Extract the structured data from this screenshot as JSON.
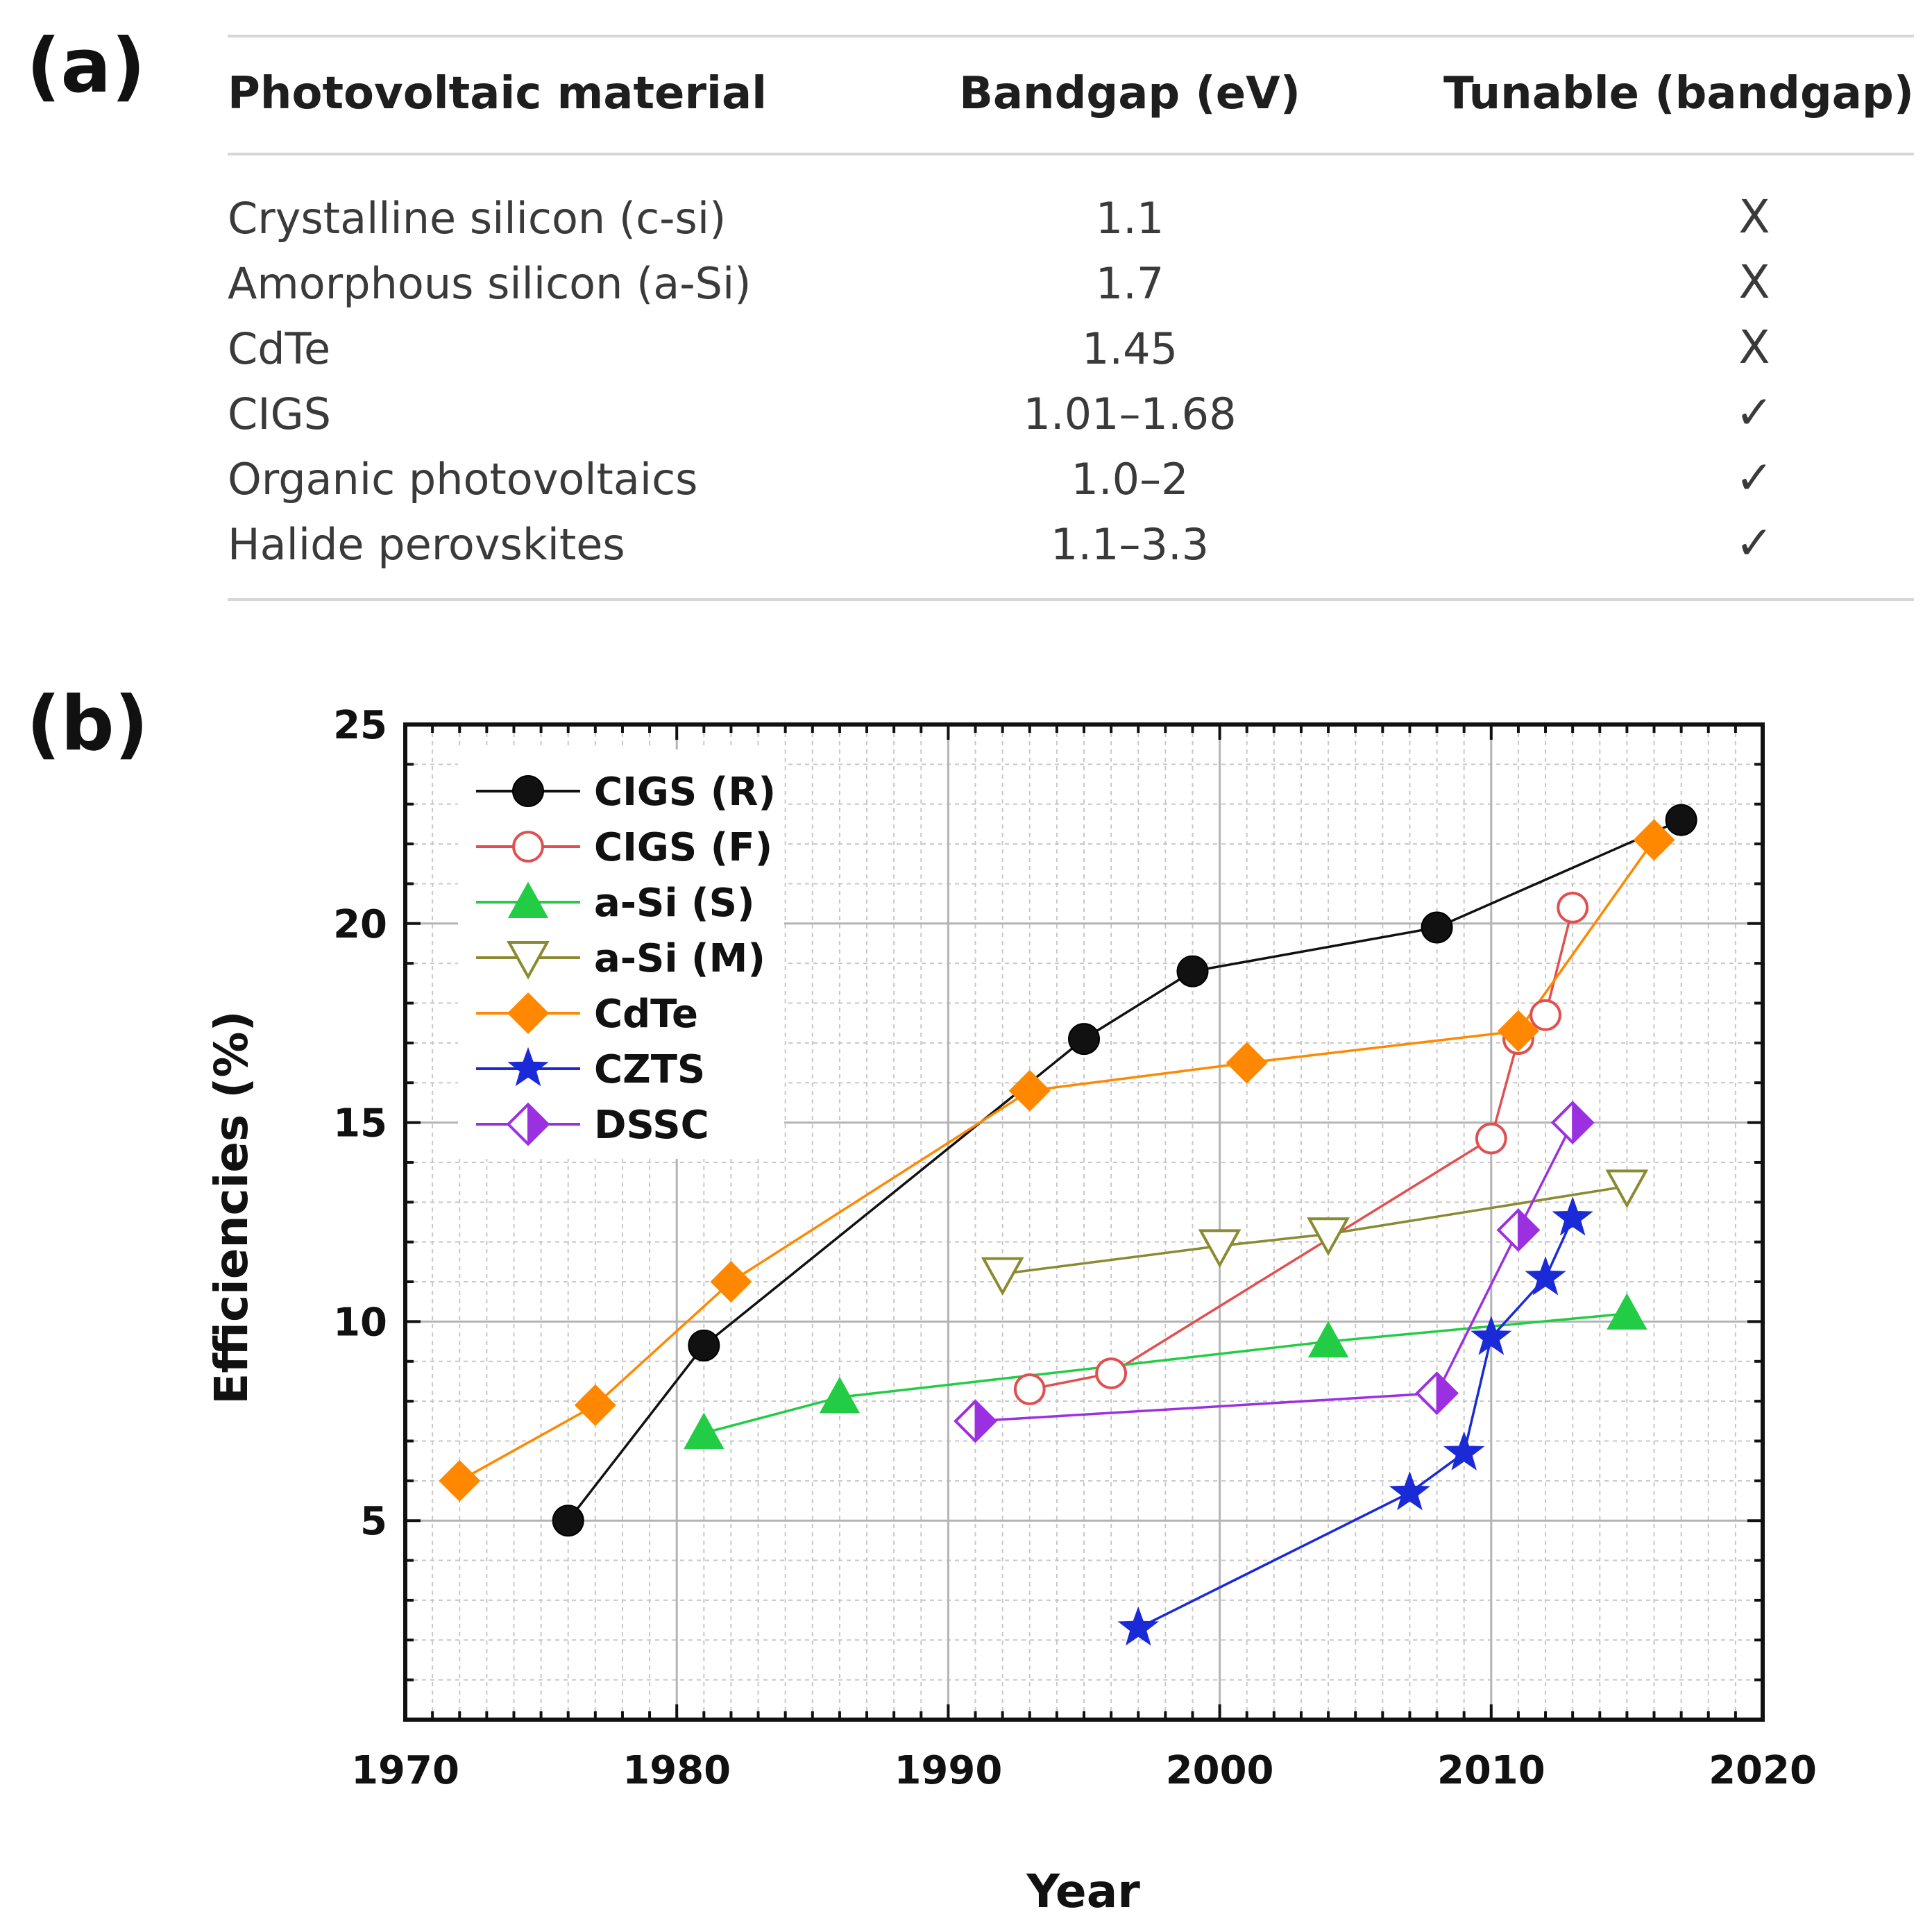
{
  "panel_a_label": "(a)",
  "panel_b_label": "(b)",
  "table": {
    "headers": [
      "Photovoltaic material",
      "Bandgap (eV)",
      "Tunable (bandgap)"
    ],
    "rows": [
      {
        "material": "Crystalline silicon (c-si)",
        "bandgap": "1.1",
        "tunable": "X"
      },
      {
        "material": "Amorphous silicon (a-Si)",
        "bandgap": "1.7",
        "tunable": "X"
      },
      {
        "material": "CdTe",
        "bandgap": "1.45",
        "tunable": "X"
      },
      {
        "material": "CIGS",
        "bandgap": "1.01–1.68",
        "tunable": "✓"
      },
      {
        "material": "Organic photovoltaics",
        "bandgap": "1.0–2",
        "tunable": "✓"
      },
      {
        "material": "Halide perovskites",
        "bandgap": "1.1–3.3",
        "tunable": "✓"
      }
    ]
  },
  "chart_data": {
    "type": "line",
    "title": "",
    "xlabel": "Year",
    "ylabel": "Efficiencies (%)",
    "xlim": [
      1970,
      2020
    ],
    "ylim": [
      0,
      25
    ],
    "xticks": [
      1970,
      1980,
      1990,
      2000,
      2010,
      2020
    ],
    "yticks": [
      5,
      10,
      15,
      20,
      25
    ],
    "grid": true,
    "legend_position": "top-left",
    "series": [
      {
        "name": "CIGS (R)",
        "color": "#111111",
        "marker": "filled-circle",
        "points": [
          [
            1976,
            5.0
          ],
          [
            1981,
            9.4
          ],
          [
            1995,
            17.1
          ],
          [
            1999,
            18.8
          ],
          [
            2008,
            19.9
          ],
          [
            2017,
            22.6
          ]
        ]
      },
      {
        "name": "CIGS (F)",
        "color": "#e05050",
        "marker": "open-circle",
        "points": [
          [
            1993,
            8.3
          ],
          [
            1996,
            8.7
          ],
          [
            2010,
            14.6
          ],
          [
            2011,
            17.1
          ],
          [
            2012,
            17.7
          ],
          [
            2013,
            20.4
          ]
        ]
      },
      {
        "name": "a-Si (S)",
        "color": "#22cc44",
        "marker": "filled-triangle-up",
        "points": [
          [
            1981,
            7.2
          ],
          [
            1986,
            8.1
          ],
          [
            2004,
            9.5
          ],
          [
            2015,
            10.2
          ]
        ]
      },
      {
        "name": "a-Si (M)",
        "color": "#8a8a30",
        "marker": "open-triangle-down",
        "points": [
          [
            1992,
            11.2
          ],
          [
            2000,
            11.9
          ],
          [
            2004,
            12.2
          ],
          [
            2015,
            13.4
          ]
        ]
      },
      {
        "name": "CdTe",
        "color": "#ff8800",
        "marker": "filled-diamond",
        "points": [
          [
            1972,
            6.0
          ],
          [
            1977,
            7.9
          ],
          [
            1982,
            11.0
          ],
          [
            1993,
            15.8
          ],
          [
            2001,
            16.5
          ],
          [
            2011,
            17.3
          ],
          [
            2016,
            22.1
          ]
        ]
      },
      {
        "name": "CZTS",
        "color": "#1a2ad6",
        "marker": "star",
        "points": [
          [
            1997,
            2.3
          ],
          [
            2007,
            5.7
          ],
          [
            2009,
            6.7
          ],
          [
            2010,
            9.6
          ],
          [
            2012,
            11.1
          ],
          [
            2013,
            12.6
          ]
        ]
      },
      {
        "name": "DSSC",
        "color": "#9b30e0",
        "marker": "half-diamond",
        "points": [
          [
            1991,
            7.5
          ],
          [
            2008,
            8.2
          ],
          [
            2011,
            12.3
          ],
          [
            2013,
            15.0
          ]
        ]
      }
    ]
  }
}
